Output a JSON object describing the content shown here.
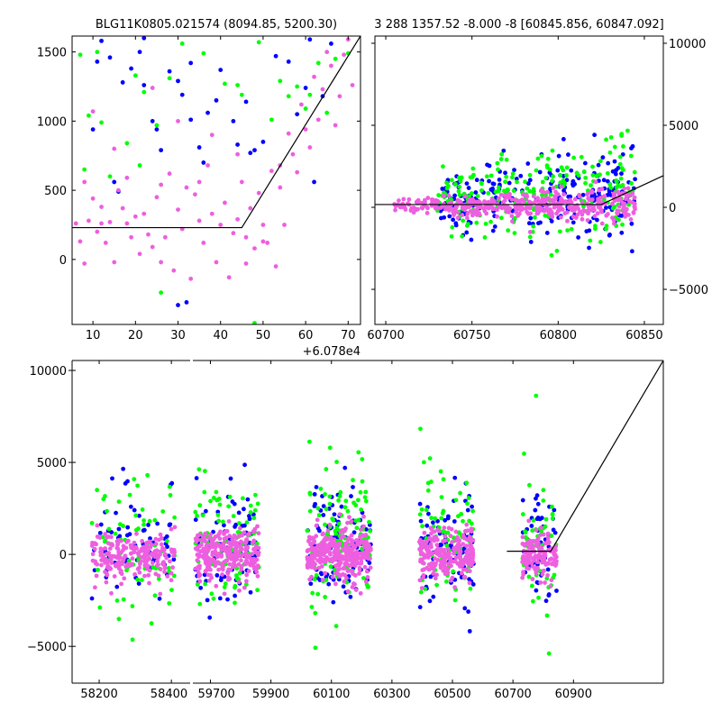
{
  "chart_data": [
    {
      "id": "top-left",
      "type": "scatter",
      "title": "BLG11K0805.021574 (8094.85, 5200.30)",
      "xlim": [
        5.1,
        72.9
      ],
      "ylim": [
        -470,
        1615
      ],
      "xticks": [
        10,
        20,
        30,
        40,
        50,
        60,
        70
      ],
      "yticks": [
        0,
        500,
        1000,
        1500
      ],
      "offset_label": "+6.078e4",
      "model_line": [
        [
          5.1,
          230
        ],
        [
          45,
          230
        ],
        [
          72.9,
          1615
        ]
      ],
      "series": [
        {
          "name": "blue",
          "color": "#0000ff",
          "points": [
            [
              12,
              1580
            ],
            [
              14,
              1460
            ],
            [
              11,
              1430
            ],
            [
              10,
              940
            ],
            [
              15,
              560
            ],
            [
              16,
              490
            ],
            [
              19,
              1380
            ],
            [
              21,
              1500
            ],
            [
              22,
              1260
            ],
            [
              24,
              1000
            ],
            [
              25,
              940
            ],
            [
              26,
              790
            ],
            [
              28,
              1360
            ],
            [
              30,
              1290
            ],
            [
              31,
              1190
            ],
            [
              33,
              1420
            ],
            [
              33,
              1010
            ],
            [
              35,
              810
            ],
            [
              37,
              1060
            ],
            [
              39,
              1150
            ],
            [
              40,
              1370
            ],
            [
              43,
              1000
            ],
            [
              46,
              1140
            ],
            [
              47,
              770
            ],
            [
              48,
              790
            ],
            [
              50,
              850
            ],
            [
              53,
              1470
            ],
            [
              56,
              1430
            ],
            [
              60,
              1240
            ],
            [
              61,
              1590
            ],
            [
              62,
              560
            ],
            [
              64,
              1180
            ],
            [
              66,
              1560
            ],
            [
              30,
              -330
            ],
            [
              32,
              -310
            ],
            [
              22,
              1600
            ],
            [
              17,
              1280
            ],
            [
              36,
              700
            ],
            [
              44,
              830
            ],
            [
              58,
              1050
            ]
          ]
        },
        {
          "name": "green",
          "color": "#00ff00",
          "points": [
            [
              7,
              1480
            ],
            [
              9,
              1040
            ],
            [
              11,
              1500
            ],
            [
              12,
              990
            ],
            [
              14,
              600
            ],
            [
              18,
              840
            ],
            [
              20,
              1330
            ],
            [
              21,
              680
            ],
            [
              22,
              1210
            ],
            [
              25,
              970
            ],
            [
              28,
              1310
            ],
            [
              31,
              1560
            ],
            [
              36,
              1490
            ],
            [
              41,
              1270
            ],
            [
              45,
              1190
            ],
            [
              49,
              1570
            ],
            [
              52,
              1010
            ],
            [
              54,
              1290
            ],
            [
              56,
              1180
            ],
            [
              60,
              1090
            ],
            [
              61,
              1190
            ],
            [
              63,
              1420
            ],
            [
              65,
              1060
            ],
            [
              67,
              1450
            ],
            [
              70,
              1490
            ],
            [
              8,
              650
            ],
            [
              26,
              -240
            ],
            [
              48,
              -460
            ],
            [
              44,
              1260
            ],
            [
              58,
              1250
            ]
          ]
        },
        {
          "name": "violet",
          "color": "#ee5ee0",
          "points": [
            [
              6,
              260
            ],
            [
              7,
              130
            ],
            [
              8,
              -30
            ],
            [
              9,
              280
            ],
            [
              10,
              440
            ],
            [
              11,
              200
            ],
            [
              12,
              260
            ],
            [
              13,
              120
            ],
            [
              14,
              270
            ],
            [
              15,
              -20
            ],
            [
              16,
              500
            ],
            [
              17,
              370
            ],
            [
              18,
              260
            ],
            [
              19,
              160
            ],
            [
              20,
              310
            ],
            [
              21,
              40
            ],
            [
              22,
              330
            ],
            [
              23,
              180
            ],
            [
              24,
              90
            ],
            [
              25,
              450
            ],
            [
              26,
              540
            ],
            [
              27,
              160
            ],
            [
              28,
              620
            ],
            [
              29,
              -80
            ],
            [
              30,
              360
            ],
            [
              31,
              220
            ],
            [
              32,
              520
            ],
            [
              33,
              -140
            ],
            [
              34,
              470
            ],
            [
              35,
              280
            ],
            [
              36,
              120
            ],
            [
              37,
              680
            ],
            [
              38,
              330
            ],
            [
              39,
              -20
            ],
            [
              40,
              250
            ],
            [
              41,
              410
            ],
            [
              42,
              -130
            ],
            [
              43,
              190
            ],
            [
              44,
              290
            ],
            [
              45,
              560
            ],
            [
              46,
              -30
            ],
            [
              47,
              370
            ],
            [
              48,
              80
            ],
            [
              49,
              480
            ],
            [
              50,
              250
            ],
            [
              51,
              120
            ],
            [
              52,
              640
            ],
            [
              53,
              -50
            ],
            [
              54,
              520
            ],
            [
              55,
              250
            ],
            [
              56,
              910
            ],
            [
              57,
              760
            ],
            [
              58,
              630
            ],
            [
              59,
              1120
            ],
            [
              60,
              940
            ],
            [
              61,
              810
            ],
            [
              62,
              1320
            ],
            [
              63,
              1010
            ],
            [
              64,
              1230
            ],
            [
              65,
              1500
            ],
            [
              66,
              1400
            ],
            [
              67,
              970
            ],
            [
              68,
              1180
            ],
            [
              69,
              1480
            ],
            [
              70,
              1590
            ],
            [
              71,
              1260
            ],
            [
              10,
              1070
            ],
            [
              15,
              800
            ],
            [
              24,
              1240
            ],
            [
              30,
              1000
            ],
            [
              38,
              900
            ],
            [
              44,
              760
            ],
            [
              50,
              130
            ],
            [
              54,
              680
            ],
            [
              35,
              560
            ],
            [
              18,
              590
            ],
            [
              12,
              380
            ],
            [
              8,
              560
            ],
            [
              26,
              -20
            ],
            [
              46,
              160
            ]
          ]
        }
      ]
    },
    {
      "id": "top-right",
      "type": "scatter",
      "title": "3 288 1357.52 -8.000 -8 [60845.856, 60847.092]",
      "xlim": [
        60693.7,
        60861
      ],
      "ylim": [
        -7140,
        10440
      ],
      "xticks": [
        60700,
        60750,
        60800,
        60850
      ],
      "yticks": [
        -5000,
        0,
        5000,
        10000
      ],
      "model_line": [
        [
          60693.7,
          170
        ],
        [
          60825,
          170
        ],
        [
          60861,
          1930
        ]
      ],
      "series": [
        {
          "name": "blue",
          "color": "#0000ff",
          "cluster": {
            "x": [
              60730,
              60845
            ],
            "ymean": 700,
            "ysd": 1100,
            "n": 260,
            "seed": 11
          }
        },
        {
          "name": "green",
          "color": "#00ff00",
          "cluster": {
            "x": [
              60730,
              60845
            ],
            "ymean": 800,
            "ysd": 1400,
            "n": 240,
            "seed": 23
          }
        },
        {
          "name": "violet",
          "color": "#ee5ee0",
          "cluster": {
            "x": [
              60705,
              60845
            ],
            "ymean": 150,
            "ysd": 400,
            "n": 420,
            "seed": 37
          }
        }
      ]
    },
    {
      "id": "bottom",
      "type": "scatter",
      "xlim_segments": [
        [
          58125,
          58452
        ],
        [
          59642,
          61197
        ]
      ],
      "ylim": [
        -7000,
        10540
      ],
      "xticks": [
        58200,
        58400,
        59700,
        59900,
        60100,
        60300,
        60500,
        60700,
        60900
      ],
      "yticks": [
        -5000,
        0,
        5000,
        10000
      ],
      "model_line": [
        [
          60680,
          170
        ],
        [
          60825,
          170
        ],
        [
          61197,
          10540
        ]
      ],
      "seasons": [
        [
          58180,
          58410,
          1
        ],
        [
          59650,
          59860,
          1.3
        ],
        [
          60020,
          60230,
          1.6
        ],
        [
          60390,
          60570,
          1.2
        ],
        [
          60730,
          60845,
          0.7
        ]
      ],
      "series": [
        {
          "name": "blue",
          "color": "#0000ff",
          "ymean": 400,
          "ysd": 1700,
          "n": 70,
          "seed": 5
        },
        {
          "name": "green",
          "color": "#00ff00",
          "ymean": 700,
          "ysd": 2200,
          "n": 70,
          "seed": 9
        },
        {
          "name": "violet",
          "color": "#ee5ee0",
          "ymean": 0,
          "ysd": 800,
          "n": 200,
          "seed": 13
        }
      ]
    }
  ]
}
